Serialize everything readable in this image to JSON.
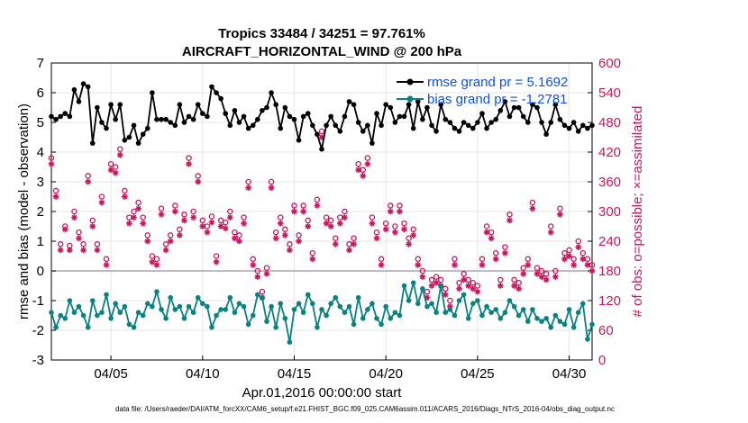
{
  "chart_data": {
    "type": "line",
    "title": "Tropics 33484 / 34251 = 97.761%",
    "subtitle": "AIRCRAFT_HORIZONTAL_WIND @ 200 hPa",
    "xlabel": "Apr.01,2016 00:00:00 start",
    "ylabel": "rmse and bias (model - observation)",
    "ylabel_right": "# of obs: o=possible; ×=assimilated",
    "xlim": [
      0.75,
      30.25
    ],
    "ylim": [
      -3,
      7
    ],
    "ylim_right": [
      0,
      600
    ],
    "x_ticks": [
      4,
      9,
      14,
      19,
      24,
      29
    ],
    "x_tick_labels": [
      "04/05",
      "04/10",
      "04/15",
      "04/20",
      "04/25",
      "04/30"
    ],
    "y_ticks": [
      -3,
      -2,
      -1,
      0,
      1,
      2,
      3,
      4,
      5,
      6,
      7
    ],
    "y_tick_labels": [
      "-3",
      "-2",
      "-1",
      "0",
      "1",
      "2",
      "3",
      "4",
      "5",
      "6",
      "7"
    ],
    "y_ticks_right": [
      0,
      60,
      120,
      180,
      240,
      300,
      360,
      420,
      480,
      540,
      600
    ],
    "y_tick_labels_right": [
      "0",
      "60",
      "120",
      "180",
      "240",
      "300",
      "360",
      "420",
      "480",
      "540",
      "600"
    ],
    "zero_line": 0,
    "legend": {
      "location": "top-right",
      "entries": [
        "rmse grand pr = 5.1692",
        "bias grand pr = -1.2781"
      ]
    },
    "colors": {
      "rmse": "#000000",
      "bias": "#0a8282",
      "obs": "#c8175d",
      "legend_text": "#0c52e8",
      "zero_line": "#b0a0b0",
      "grid": "#e6e6e6"
    },
    "series_meta": {
      "t0": 0.75,
      "dt": 0.25,
      "count": 119
    },
    "series": [
      {
        "name": "rmse",
        "axis": "left",
        "values": [
          5.2,
          5.1,
          5.2,
          5.3,
          5.2,
          6.1,
          5.7,
          6.3,
          6.2,
          4.3,
          5.5,
          5.0,
          4.8,
          5.6,
          5.1,
          5.6,
          4.4,
          4.5,
          4.9,
          4.3,
          4.6,
          4.8,
          6.0,
          5.1,
          5.1,
          5.1,
          5.0,
          4.9,
          5.6,
          5.0,
          5.2,
          5.1,
          5.6,
          5.3,
          5.2,
          6.2,
          6.0,
          5.8,
          5.3,
          4.9,
          5.4,
          5.0,
          5.2,
          4.8,
          4.9,
          5.1,
          5.4,
          5.5,
          6.0,
          5.6,
          4.8,
          5.5,
          5.2,
          5.1,
          4.4,
          5.2,
          5.3,
          4.9,
          4.6,
          4.1,
          4.9,
          5.2,
          4.9,
          4.7,
          5.2,
          5.7,
          5.6,
          5.0,
          4.7,
          4.9,
          4.3,
          5.3,
          4.9,
          5.6,
          5.5,
          5.0,
          5.2,
          5.2,
          5.6,
          4.8,
          5.7,
          5.1,
          5.5,
          4.9,
          4.7,
          5.6,
          5.1,
          5.0,
          4.8,
          4.7,
          5.0,
          4.9,
          4.8,
          5.0,
          5.3,
          4.8,
          5.0,
          5.1,
          5.4,
          5.7,
          5.2,
          5.5,
          5.5,
          5.2,
          5.0,
          5.6,
          5.5,
          5.0,
          4.6,
          5.0,
          5.6,
          5.1,
          4.9,
          4.8,
          5.0,
          4.7,
          4.9,
          4.8,
          4.9
        ]
      },
      {
        "name": "bias",
        "axis": "left",
        "values": [
          -1.4,
          -1.9,
          -1.5,
          -1.6,
          -1.0,
          -1.4,
          -1.2,
          -1.5,
          -1.9,
          -1.0,
          -1.5,
          -1.4,
          -0.8,
          -1.6,
          -1.1,
          -1.4,
          -1.2,
          -1.8,
          -1.9,
          -1.4,
          -1.5,
          -1.1,
          -1.2,
          -0.7,
          -1.3,
          -1.6,
          -0.9,
          -1.3,
          -1.2,
          -1.6,
          -1.2,
          -1.4,
          -0.9,
          -1.1,
          -1.2,
          -1.9,
          -1.5,
          -1.3,
          -1.3,
          -0.9,
          -1.4,
          -1.1,
          -1.2,
          -1.8,
          -1.5,
          -0.8,
          -0.9,
          -1.7,
          -1.2,
          -1.9,
          -1.1,
          -1.6,
          -2.4,
          -1.3,
          -1.1,
          -1.4,
          -0.8,
          -1.1,
          -1.9,
          -1.3,
          -1.5,
          -1.1,
          -0.9,
          -1.2,
          -1.4,
          -1.2,
          -1.8,
          -0.9,
          -1.6,
          -1.3,
          -1.1,
          -1.6,
          -1.8,
          -1.2,
          -1.6,
          -1.4,
          -1.5,
          -0.5,
          -1.0,
          -0.4,
          -1.1,
          -0.6,
          -1.2,
          -1.1,
          -1.4,
          -0.5,
          -1.4,
          -1.3,
          -1.5,
          -1.0,
          -0.8,
          -1.6,
          -1.1,
          -1.0,
          -1.5,
          -1.2,
          -1.4,
          -1.3,
          -1.6,
          -1.4,
          -1.0,
          -1.2,
          -1.5,
          -1.3,
          -1.7,
          -1.3,
          -1.6,
          -1.7,
          -1.6,
          -1.9,
          -1.5,
          -1.7,
          -1.8,
          -1.3,
          -1.9,
          -1.4,
          -1.1,
          -2.3,
          -1.8
        ]
      },
      {
        "name": "possible",
        "axis": "right",
        "marker": "o",
        "values": [
          408,
          342,
          234,
          270,
          231,
          300,
          258,
          234,
          372,
          282,
          234,
          330,
          204,
          396,
          390,
          426,
          342,
          288,
          300,
          318,
          288,
          252,
          210,
          204,
          306,
          234,
          252,
          312,
          264,
          294,
          408,
          300,
          372,
          282,
          270,
          290,
          210,
          282,
          278,
          300,
          258,
          252,
          288,
          360,
          204,
          180,
          138,
          186,
          360,
          258,
          288,
          264,
          234,
          312,
          252,
          312,
          282,
          216,
          324,
          462,
          288,
          282,
          246,
          288,
          300,
          234,
          246,
          396,
          384,
          408,
          288,
          258,
          204,
          276,
          312,
          270,
          312,
          276,
          246,
          264,
          204,
          180,
          138,
          162,
          168,
          162,
          144,
          120,
          204,
          156,
          174,
          162,
          156,
          150,
          204,
          270,
          258,
          216,
          162,
          228,
          294,
          162,
          156,
          186,
          204,
          318,
          186,
          180,
          174,
          270,
          180,
          306,
          216,
          222,
          204,
          240,
          216,
          204,
          192
        ]
      },
      {
        "name": "assimilated",
        "axis": "right",
        "marker": "*",
        "values": [
          396,
          330,
          222,
          264,
          222,
          288,
          246,
          222,
          360,
          270,
          222,
          318,
          192,
          384,
          378,
          414,
          330,
          276,
          288,
          306,
          276,
          240,
          198,
          192,
          294,
          222,
          240,
          300,
          252,
          282,
          396,
          288,
          360,
          270,
          258,
          278,
          198,
          270,
          266,
          288,
          246,
          240,
          276,
          348,
          192,
          168,
          126,
          174,
          348,
          246,
          276,
          252,
          222,
          300,
          240,
          300,
          270,
          204,
          312,
          450,
          276,
          270,
          234,
          276,
          288,
          222,
          234,
          384,
          372,
          396,
          276,
          246,
          192,
          264,
          300,
          258,
          300,
          264,
          234,
          252,
          192,
          168,
          126,
          150,
          156,
          150,
          132,
          108,
          192,
          144,
          162,
          150,
          144,
          138,
          192,
          258,
          246,
          204,
          150,
          216,
          282,
          150,
          144,
          174,
          192,
          306,
          174,
          168,
          162,
          258,
          168,
          294,
          204,
          210,
          192,
          228,
          204,
          192,
          180
        ]
      }
    ]
  },
  "footer": {
    "data_file": "data file: /Users/raeder/DAI/ATM_forcXX/CAM6_setup/f.e21.FHIST_BGC.f09_025.CAM6assim.011/ACARS_2016/Diags_NTrS_2016-04/obs_diag_output.nc"
  }
}
